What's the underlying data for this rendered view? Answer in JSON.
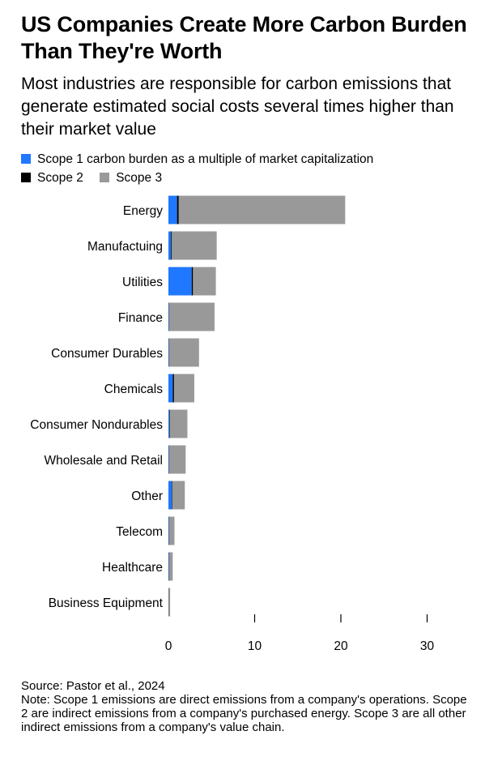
{
  "header": {
    "title": "US Companies Create More Carbon Burden Than They're Worth",
    "subtitle": "Most industries are responsible for carbon emissions that generate estimated social costs several times higher than their market value"
  },
  "legend": {
    "items": [
      {
        "label": "Scope 1 carbon burden as a multiple of market capitalization",
        "color": "#1f78ff"
      },
      {
        "label": "Scope 2",
        "color": "#000000"
      },
      {
        "label": "Scope 3",
        "color": "#999999"
      }
    ]
  },
  "chart_data": {
    "type": "bar",
    "orientation": "horizontal",
    "stacked": true,
    "categories": [
      "Energy",
      "Manufactuing",
      "Utilities",
      "Finance",
      "Consumer Durables",
      "Chemicals",
      "Consumer Nondurables",
      "Wholesale and Retail",
      "Other",
      "Telecom",
      "Healthcare",
      "Business Equipment"
    ],
    "series": [
      {
        "name": "Scope 1 carbon burden as a multiple of market capitalization",
        "color": "#1f78ff",
        "values": [
          1.0,
          0.3,
          2.7,
          0.05,
          0.05,
          0.5,
          0.1,
          0.05,
          0.4,
          0.05,
          0.05,
          0.0
        ]
      },
      {
        "name": "Scope 2",
        "color": "#000000",
        "values": [
          0.2,
          0.1,
          0.15,
          0.02,
          0.02,
          0.15,
          0.05,
          0.02,
          0.05,
          0.02,
          0.02,
          0.02
        ]
      },
      {
        "name": "Scope 3",
        "color": "#999999",
        "values": [
          19.3,
          5.2,
          2.65,
          5.28,
          3.48,
          2.35,
          2.05,
          1.93,
          1.45,
          0.63,
          0.43,
          0.18
        ]
      }
    ],
    "xlim": [
      0,
      30
    ],
    "xticks": [
      0,
      10,
      20,
      30
    ],
    "grid": false,
    "legend_position": "top-left"
  },
  "footer": {
    "source": "Source: Pastor et al., 2024",
    "note": "Note: Scope 1 emissions are direct emissions from a company's operations. Scope 2 are indirect emissions from a company's purchased energy. Scope 3 are all other indirect emissions from a company's value chain."
  }
}
